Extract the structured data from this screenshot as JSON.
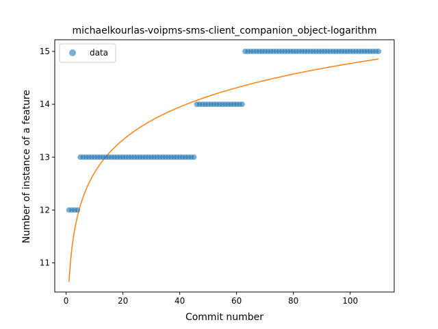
{
  "chart_data": {
    "type": "scatter",
    "title": "michaelkourlas-voipms-sms-client_companion_object-logarithm",
    "xlabel": "Commit number",
    "ylabel": "Number of instance of a feature",
    "xlim": [
      -4,
      115.5
    ],
    "ylim": [
      10.45,
      15.22
    ],
    "xticks": [
      0,
      20,
      40,
      60,
      80,
      100
    ],
    "yticks": [
      11,
      12,
      13,
      14,
      15
    ],
    "grid": false,
    "legend": {
      "placement": "top-left",
      "entries": [
        "data"
      ]
    },
    "colors": {
      "data": "#1f77b4",
      "fit": "#ff7f0e"
    },
    "series": [
      {
        "name": "data",
        "kind": "scatter",
        "segments": [
          {
            "x_from": 1,
            "x_to": 4,
            "y": 12
          },
          {
            "x_from": 5,
            "x_to": 45,
            "y": 13
          },
          {
            "x_from": 46,
            "x_to": 62,
            "y": 14
          },
          {
            "x_from": 63,
            "x_to": 110,
            "y": 15
          }
        ]
      },
      {
        "kind": "line",
        "x_from": 1,
        "x_to": 110,
        "fit": {
          "model": "a + b*ln(x)",
          "a": 10.64,
          "b": 0.897
        }
      }
    ]
  }
}
